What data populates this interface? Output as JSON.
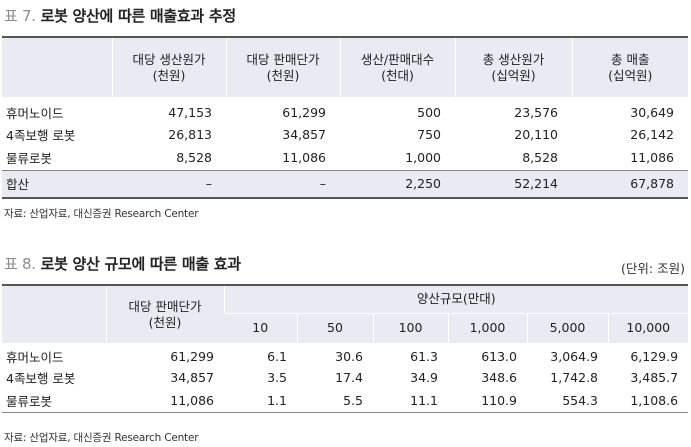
{
  "table1": {
    "label": "표 7.",
    "title": "로봇 양산에 따른 매출효과 추정",
    "headers": [
      {
        "line1": "",
        "line2": ""
      },
      {
        "line1": "대당 생산원가",
        "line2": "(천원)"
      },
      {
        "line1": "대당 판매단가",
        "line2": "(천원)"
      },
      {
        "line1": "생산/판매대수",
        "line2": "(천대)"
      },
      {
        "line1": "총 생산원가",
        "line2": "(십억원)"
      },
      {
        "line1": "총 매출",
        "line2": "(십억원)"
      }
    ],
    "rows": [
      [
        "휴머노이드",
        "47,153",
        "61,299",
        "500",
        "23,576",
        "30,649"
      ],
      [
        "4족보행 로봇",
        "26,813",
        "34,857",
        "750",
        "20,110",
        "26,142"
      ],
      [
        "물류로봇",
        "8,528",
        "11,086",
        "1,000",
        "8,528",
        "11,086"
      ]
    ],
    "total": [
      "합산",
      "–",
      "–",
      "2,250",
      "52,214",
      "67,878"
    ],
    "source": "자료: 산업자료, 대신증권 Research Center"
  },
  "table2": {
    "label": "표 8.",
    "title": "로봇 양산 규모에 따른 매출 효과",
    "unit": "(단위: 조원)",
    "col_price_line1": "대당 판매단가",
    "col_price_line2": "(천원)",
    "group_header": "양산규모(만대)",
    "scales": [
      "10",
      "50",
      "100",
      "1,000",
      "5,000",
      "10,000"
    ],
    "rows": [
      [
        "휴머노이드",
        "61,299",
        "6.1",
        "30.6",
        "61.3",
        "613.0",
        "3,064.9",
        "6,129.9"
      ],
      [
        "4족보행 로봇",
        "34,857",
        "3.5",
        "17.4",
        "34.9",
        "348.6",
        "1,742.8",
        "3,485.7"
      ],
      [
        "물류로봇",
        "11,086",
        "1.1",
        "5.5",
        "11.1",
        "110.9",
        "554.3",
        "1,108.6"
      ]
    ],
    "source": "자료: 산업자료, 대신증권 Research Center"
  }
}
